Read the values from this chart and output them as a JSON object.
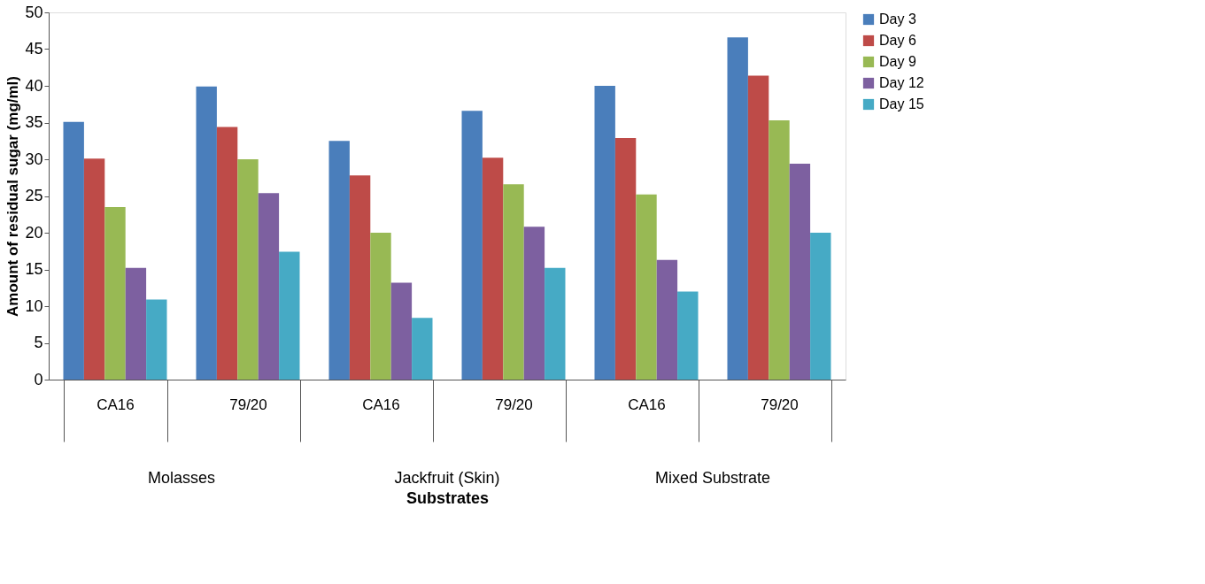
{
  "chart_data": {
    "type": "bar",
    "xlabel": "Substrates",
    "ylabel": "Amount of residual sugar (mg/ml)",
    "categories": [
      "CA16",
      "79/20",
      "CA16",
      "79/20",
      "CA16",
      "79/20"
    ],
    "annotations": [
      "Molasses",
      "Jackfruit (Skin)",
      "Mixed Substrate"
    ],
    "series": [
      {
        "name": "Day 3",
        "color": "#4a7ebb",
        "values": [
          35.1,
          39.9,
          32.5,
          36.6,
          40.0,
          46.6
        ]
      },
      {
        "name": "Day 6",
        "color": "#be4b48",
        "values": [
          30.1,
          34.4,
          27.8,
          30.2,
          32.9,
          41.4
        ]
      },
      {
        "name": "Day 9",
        "color": "#98b954",
        "values": [
          23.5,
          30.0,
          20.0,
          26.6,
          25.2,
          35.3
        ]
      },
      {
        "name": "Day 12",
        "color": "#7d60a0",
        "values": [
          15.2,
          25.4,
          13.2,
          20.8,
          16.3,
          29.4
        ]
      },
      {
        "name": "Day 15",
        "color": "#46aac5",
        "values": [
          10.9,
          17.4,
          8.4,
          15.2,
          12.0,
          20.0
        ]
      }
    ],
    "ylim": [
      0,
      50
    ],
    "yticks": [
      0,
      5,
      10,
      15,
      20,
      25,
      30,
      35,
      40,
      45,
      50
    ],
    "grid": false,
    "legend": "right"
  }
}
